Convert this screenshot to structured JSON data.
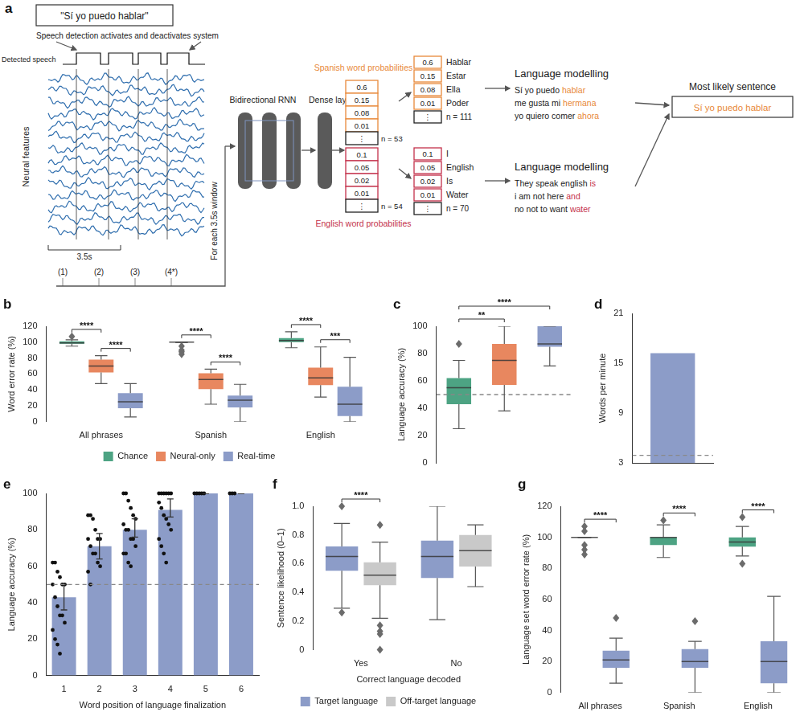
{
  "panel_a": {
    "label": "a",
    "input_sentence": "\"Sí yo puedo hablar\"",
    "speech_detection": "Speech detection activates and deactivates system",
    "detected_speech": "Detected speech",
    "neural_features": "Neural features",
    "window_length": "3.5s",
    "windows": [
      "(1)",
      "(2)",
      "(3)",
      "(4*)"
    ],
    "window_note": "For each 3.5s window",
    "rnn": "Bidirectional RNN",
    "dense": "Dense layer",
    "ellipsis": "⋮",
    "spanish": {
      "title": "Spanish word probabilities",
      "probabilities": [
        0.6,
        0.15,
        0.08,
        0.01
      ],
      "count": "n = 53",
      "words": [
        {
          "p": 0.6,
          "word": "Hablar"
        },
        {
          "p": 0.15,
          "word": "Estar"
        },
        {
          "p": 0.08,
          "word": "Ella"
        },
        {
          "p": 0.01,
          "word": "Poder"
        }
      ],
      "word_count": "n = 111",
      "model": "Language modelling",
      "sentences": [
        {
          "text": "Sí yo puedo",
          "highlight": "hablar"
        },
        {
          "text": "me gusta mi",
          "highlight": "hermana"
        },
        {
          "text": "yo quiero comer",
          "highlight": "ahora"
        }
      ]
    },
    "english": {
      "title": "English word probabilities",
      "probabilities": [
        0.1,
        0.05,
        0.02,
        0.01
      ],
      "count": "n = 54",
      "words": [
        {
          "p": 0.1,
          "word": "I"
        },
        {
          "p": 0.05,
          "word": "English"
        },
        {
          "p": 0.02,
          "word": "Is"
        },
        {
          "p": 0.01,
          "word": "Water"
        }
      ],
      "word_count": "n = 70",
      "model": "Language modelling",
      "sentences": [
        {
          "text": "They speak english",
          "highlight": "is"
        },
        {
          "text": "i am not here",
          "highlight": "and"
        },
        {
          "text": "no not to want",
          "highlight": "water"
        }
      ]
    },
    "result_title": "Most likely sentence",
    "result": "Sí yo puedo hablar"
  },
  "chart_data": [
    {
      "type": "box",
      "title": "b",
      "y_label": "Word error rate (%)",
      "categories": [
        "All phrases",
        "Spanish",
        "English"
      ],
      "ylim": [
        0,
        120
      ],
      "yticks": [
        0,
        20,
        40,
        60,
        80,
        100,
        120
      ],
      "grid": false,
      "legend": "bottom",
      "series": [
        {
          "name": "Chance",
          "color": "#4da383",
          "values": [
            {
              "whisker_low": 95,
              "q1": 98,
              "median": 99,
              "q3": 101,
              "whisker_high": 103,
              "outliers": [
                107
              ]
            },
            {
              "whisker_low": 100,
              "q1": 100,
              "median": 100,
              "q3": 100,
              "whisker_high": 100,
              "outliers": [
                95,
                90,
                88,
                85
              ]
            },
            {
              "whisker_low": 93,
              "q1": 100,
              "median": 102,
              "q3": 105,
              "whisker_high": 113
            }
          ]
        },
        {
          "name": "Neural-only",
          "color": "#e8875f",
          "values": [
            {
              "whisker_low": 48,
              "q1": 62,
              "median": 70,
              "q3": 78,
              "whisker_high": 83
            },
            {
              "whisker_low": 22,
              "q1": 41,
              "median": 53,
              "q3": 61,
              "whisker_high": 66
            },
            {
              "whisker_low": 31,
              "q1": 46,
              "median": 55,
              "q3": 68,
              "whisker_high": 94
            }
          ]
        },
        {
          "name": "Real-time",
          "color": "#8c9cc8",
          "values": [
            {
              "whisker_low": 6,
              "q1": 17,
              "median": 25,
              "q3": 36,
              "whisker_high": 48
            },
            {
              "whisker_low": 0,
              "q1": 18,
              "median": 27,
              "q3": 33,
              "whisker_high": 47
            },
            {
              "whisker_low": 0,
              "q1": 7,
              "median": 22,
              "q3": 44,
              "whisker_high": 81
            }
          ]
        }
      ],
      "annotations": [
        {
          "text": "****",
          "category": 0,
          "from": 0,
          "to": 1
        },
        {
          "text": "****",
          "category": 0,
          "from": 1,
          "to": 2
        },
        {
          "text": "****",
          "category": 1,
          "from": 0,
          "to": 1
        },
        {
          "text": "****",
          "category": 1,
          "from": 1,
          "to": 2
        },
        {
          "text": "****",
          "category": 2,
          "from": 0,
          "to": 1
        },
        {
          "text": "***",
          "category": 2,
          "from": 1,
          "to": 2
        }
      ]
    },
    {
      "type": "box",
      "title": "c",
      "y_label": "Language accuracy (%)",
      "categories": [
        null,
        null,
        null
      ],
      "tick_labels": "y",
      "ylim": [
        0,
        100
      ],
      "yticks": [
        0,
        20,
        40,
        60,
        80,
        100
      ],
      "grid": false,
      "chance_line": 50,
      "colors": [
        "#4da383",
        "#e8875f",
        "#8c9cc8"
      ],
      "values": [
        {
          "whisker_low": 25,
          "q1": 43,
          "median": 55,
          "q3": 62,
          "whisker_high": 75,
          "outliers": [
            87
          ]
        },
        {
          "whisker_low": 38,
          "q1": 57,
          "median": 75,
          "q3": 87,
          "whisker_high": 100
        },
        {
          "whisker_low": 71,
          "q1": 85,
          "median": 87,
          "q3": 100,
          "whisker_high": 100
        }
      ],
      "annotations": [
        {
          "text": "**",
          "from": 0,
          "to": 1
        },
        {
          "text": "****",
          "from": 0,
          "to": 2
        }
      ]
    },
    {
      "type": "bar",
      "title": "d",
      "y_label": "Words per minute",
      "categories": [
        null
      ],
      "tick_labels": "y",
      "values": [
        16.2
      ],
      "color": "#8c9cc8",
      "ylim": [
        3,
        21
      ],
      "yticks": [
        3,
        9,
        15,
        21
      ],
      "grid": false,
      "chance_line": 3.9
    },
    {
      "type": "bar",
      "title": "e",
      "x_label": "Word position of language finalization",
      "y_label": "Language accuracy (%)",
      "categories": [
        "1",
        "2",
        "3",
        "4",
        "5",
        "6"
      ],
      "values": [
        43,
        71,
        80,
        91,
        100,
        100
      ],
      "error_low": [
        36,
        64,
        76,
        87,
        100,
        100
      ],
      "error_high": [
        50,
        78,
        86,
        97,
        100,
        100
      ],
      "points": [
        [
          62,
          62,
          57,
          54,
          50,
          50,
          50,
          43,
          38,
          33,
          33,
          29,
          25,
          20,
          17,
          12
        ],
        [
          88,
          88,
          86,
          80,
          75,
          75,
          75,
          71,
          67,
          67,
          62,
          60,
          57,
          50
        ],
        [
          100,
          100,
          96,
          92,
          88,
          86,
          83,
          80,
          80,
          75,
          75,
          71,
          67,
          67,
          62,
          60
        ],
        [
          100,
          100,
          100,
          100,
          100,
          100,
          95,
          92,
          88,
          86,
          83,
          80,
          75,
          71,
          67,
          62
        ],
        [
          100,
          100,
          100,
          100,
          100
        ],
        [
          100,
          100,
          100
        ]
      ],
      "color": "#8c9cc8",
      "ylim": [
        0,
        100
      ],
      "yticks": [
        0,
        20,
        40,
        60,
        80,
        100
      ],
      "grid": false,
      "chance_line": 50
    },
    {
      "type": "box",
      "title": "f",
      "x_label": "Correct language decoded",
      "y_label": "Sentence likelihood (0–1)",
      "categories": [
        "Yes",
        "No"
      ],
      "ylim": [
        0,
        1
      ],
      "yticks": [
        0,
        0.2,
        0.4,
        0.6,
        0.8,
        {
          "value": 1,
          "label": "1.0"
        }
      ],
      "grid": false,
      "legend": "bottom",
      "series": [
        {
          "name": "Target language",
          "color": "#8c9cc8",
          "values": [
            {
              "whisker_low": 0.29,
              "q1": 0.55,
              "median": 0.65,
              "q3": 0.72,
              "whisker_high": 0.88,
              "outliers": [
                1.0,
                0.26
              ]
            },
            {
              "whisker_low": 0.21,
              "q1": 0.5,
              "median": 0.65,
              "q3": 0.76,
              "whisker_high": 1.0
            }
          ]
        },
        {
          "name": "Off-target language",
          "color": "#c9c9c9",
          "values": [
            {
              "whisker_low": 0.22,
              "q1": 0.45,
              "median": 0.52,
              "q3": 0.61,
              "whisker_high": 0.75,
              "outliers": [
                0.87,
                0.17,
                0.13,
                0.11,
                0.0
              ]
            },
            {
              "whisker_low": 0.44,
              "q1": 0.58,
              "median": 0.69,
              "q3": 0.8,
              "whisker_high": 0.87
            }
          ]
        }
      ],
      "annotations": [
        {
          "text": "****",
          "category": 0,
          "from": 0,
          "to": 1
        }
      ]
    },
    {
      "type": "box",
      "title": "g",
      "y_label": "Language set word error rate (%)",
      "categories": [
        "All phrases",
        "Spanish",
        "English"
      ],
      "ylim": [
        0,
        120
      ],
      "yticks": [
        0,
        20,
        40,
        60,
        80,
        100,
        120
      ],
      "grid": false,
      "series": [
        {
          "color": "#4da383",
          "values": [
            {
              "whisker_low": 100,
              "q1": 100,
              "median": 100,
              "q3": 100,
              "whisker_high": 100,
              "outliers": [
                107,
                104,
                95,
                92,
                89
              ]
            },
            {
              "whisker_low": 87,
              "q1": 95,
              "median": 100,
              "q3": 100,
              "whisker_high": 108,
              "outliers": [
                111
              ]
            },
            {
              "whisker_low": 88,
              "q1": 94,
              "median": 97,
              "q3": 100,
              "whisker_high": 107,
              "outliers": [
                113,
                83
              ]
            }
          ]
        },
        {
          "color": "#8c9cc8",
          "values": [
            {
              "whisker_low": 6,
              "q1": 16,
              "median": 21,
              "q3": 27,
              "whisker_high": 35,
              "outliers": [
                48
              ]
            },
            {
              "whisker_low": 0,
              "q1": 16,
              "median": 20,
              "q3": 28,
              "whisker_high": 33,
              "outliers": [
                46
              ]
            },
            {
              "whisker_low": 0,
              "q1": 6,
              "median": 20,
              "q3": 33,
              "whisker_high": 62
            }
          ]
        }
      ],
      "annotations": [
        {
          "text": "****",
          "category": 0,
          "from": 0,
          "to": 1
        },
        {
          "text": "****",
          "category": 1,
          "from": 0,
          "to": 1
        },
        {
          "text": "****",
          "category": 2,
          "from": 0,
          "to": 1
        }
      ]
    }
  ]
}
